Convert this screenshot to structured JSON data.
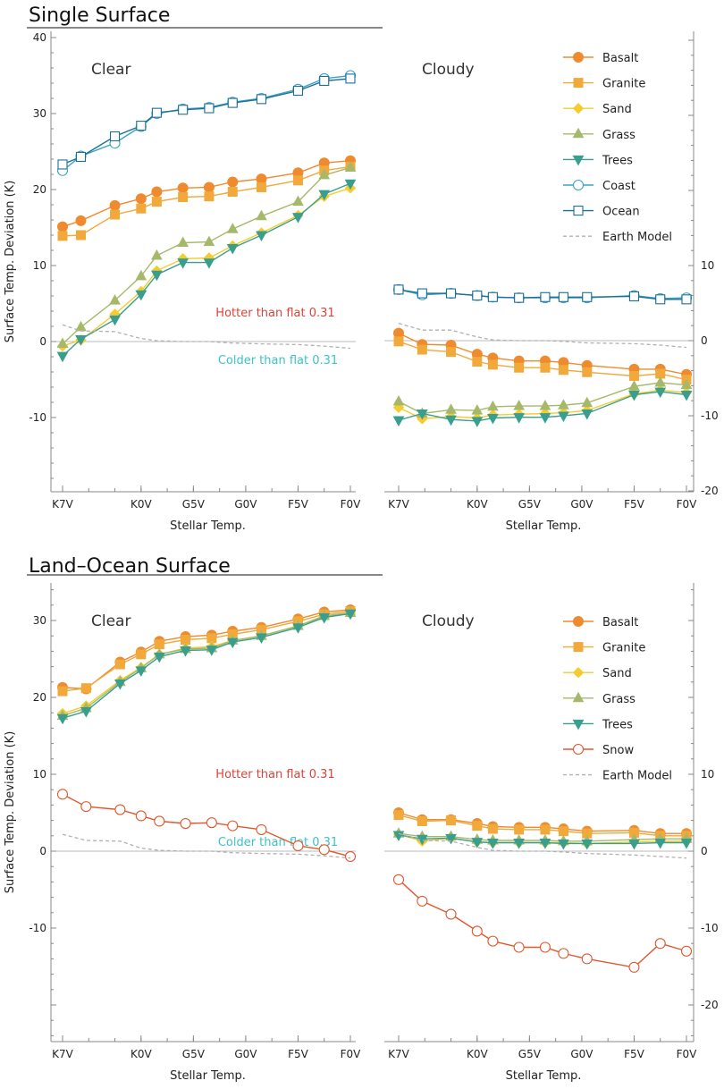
{
  "colors": {
    "Basalt": "#ef8a2e",
    "Granite": "#f2a93b",
    "Sand": "#f5cc2e",
    "Grass": "#a6b96a",
    "Trees": "#3a9e8e",
    "Coast": "#3aa3c4",
    "Ocean": "#1d6f96",
    "Snow": "#e0582e",
    "Earth Model": "#b0b0b0",
    "hotter": "#d9443a",
    "colder": "#3cc4c4"
  },
  "chart_data": [
    {
      "type": "line",
      "section": "Single Surface",
      "panel": "Clear",
      "xlabel": "Stellar Temp.",
      "ylabel": "Surface Temp. Deviation (K)",
      "ylim": [
        -20,
        41
      ],
      "yticks": [
        -10,
        0,
        10,
        20,
        30,
        40
      ],
      "x_positions": [
        0,
        1,
        2,
        3,
        4,
        5,
        6,
        7,
        8,
        9,
        10,
        11
      ],
      "x_range": [
        0,
        11
      ],
      "tick_labels": [
        {
          "x": 0,
          "label": "K7V"
        },
        {
          "x": 3,
          "label": "K0V"
        },
        {
          "x": 5,
          "label": "G5V"
        },
        {
          "x": 7,
          "label": "G0V"
        },
        {
          "x": 9,
          "label": "F5V"
        },
        {
          "x": 11,
          "label": "F0V"
        }
      ],
      "x": [
        0,
        0.7,
        2,
        3,
        3.6,
        4.6,
        5.6,
        6.5,
        7.6,
        9,
        10,
        11
      ],
      "series": [
        {
          "name": "Basalt",
          "marker": "circle",
          "values": [
            15.1,
            15.9,
            17.9,
            18.8,
            19.7,
            20.2,
            20.3,
            21.0,
            21.4,
            22.2,
            23.5,
            23.8
          ]
        },
        {
          "name": "Granite",
          "marker": "square",
          "values": [
            13.9,
            14.0,
            16.7,
            17.5,
            18.4,
            19.0,
            19.1,
            19.7,
            20.3,
            21.2,
            22.5,
            23.0
          ]
        },
        {
          "name": "Sand",
          "marker": "diamond",
          "values": [
            -0.6,
            0.2,
            3.6,
            6.6,
            9.3,
            10.9,
            11.0,
            12.6,
            14.3,
            16.6,
            19.1,
            20.2
          ]
        },
        {
          "name": "Grass",
          "marker": "triangle-up",
          "values": [
            -0.3,
            1.9,
            5.4,
            8.6,
            11.3,
            13.0,
            13.1,
            14.8,
            16.5,
            18.4,
            21.9,
            22.9
          ]
        },
        {
          "name": "Trees",
          "marker": "triangle-down",
          "values": [
            -1.9,
            0.3,
            2.9,
            6.2,
            8.8,
            10.4,
            10.4,
            12.3,
            14.0,
            16.4,
            19.4,
            20.8
          ]
        },
        {
          "name": "Coast",
          "marker": "open-circle",
          "values": [
            22.5,
            24.4,
            26.1,
            28.3,
            30.0,
            30.6,
            30.8,
            31.5,
            32.0,
            33.2,
            34.6,
            35.0
          ]
        },
        {
          "name": "Ocean",
          "marker": "open-square",
          "values": [
            23.3,
            24.3,
            27.0,
            28.4,
            30.1,
            30.5,
            30.7,
            31.4,
            31.9,
            33.0,
            34.3,
            34.6
          ]
        },
        {
          "name": "Earth Model",
          "marker": "none",
          "dashed": true,
          "values": [
            2.2,
            1.4,
            1.3,
            0.4,
            0.1,
            0.0,
            0.0,
            -0.2,
            -0.3,
            -0.4,
            -0.6,
            -0.9
          ]
        }
      ],
      "annotations": {
        "hotter": "Hotter than flat 0.31",
        "colder": "Colder than flat 0.31"
      },
      "legend": [
        "Basalt",
        "Granite",
        "Sand",
        "Grass",
        "Trees",
        "Coast",
        "Ocean",
        "Earth Model"
      ]
    },
    {
      "type": "line",
      "section": "Single Surface",
      "panel": "Cloudy",
      "xlabel": "Stellar Temp.",
      "ylabel": "",
      "ylim": [
        -20,
        41
      ],
      "yticks": [
        -20,
        -10,
        0,
        10
      ],
      "x_range": [
        0,
        11
      ],
      "tick_labels": [
        {
          "x": 0,
          "label": "K7V"
        },
        {
          "x": 3,
          "label": "K0V"
        },
        {
          "x": 5,
          "label": "G5V"
        },
        {
          "x": 7,
          "label": "G0V"
        },
        {
          "x": 9,
          "label": "F5V"
        },
        {
          "x": 11,
          "label": "F0V"
        }
      ],
      "x": [
        0,
        0.9,
        2,
        3,
        3.6,
        4.6,
        5.6,
        6.3,
        7.2,
        9,
        10,
        11
      ],
      "series": [
        {
          "name": "Basalt",
          "marker": "circle",
          "values": [
            1.0,
            -0.5,
            -0.6,
            -1.8,
            -2.3,
            -2.7,
            -2.7,
            -2.9,
            -3.3,
            -3.8,
            -3.8,
            -4.5
          ]
        },
        {
          "name": "Granite",
          "marker": "square",
          "values": [
            -0.1,
            -1.2,
            -1.5,
            -2.8,
            -3.2,
            -3.6,
            -3.6,
            -3.9,
            -4.2,
            -4.7,
            -4.4,
            -5.2
          ]
        },
        {
          "name": "Sand",
          "marker": "diamond",
          "values": [
            -8.9,
            -10.4,
            -10.1,
            -10.3,
            -9.9,
            -9.8,
            -9.7,
            -9.6,
            -9.3,
            -7.1,
            -6.6,
            -6.9
          ]
        },
        {
          "name": "Grass",
          "marker": "triangle-up",
          "values": [
            -8.1,
            -9.7,
            -9.2,
            -9.3,
            -8.8,
            -8.7,
            -8.7,
            -8.6,
            -8.3,
            -6.1,
            -5.6,
            -5.9
          ]
        },
        {
          "name": "Trees",
          "marker": "triangle-down",
          "values": [
            -10.6,
            -9.7,
            -10.5,
            -10.7,
            -10.3,
            -10.2,
            -10.2,
            -10.0,
            -9.7,
            -7.2,
            -6.8,
            -7.2
          ]
        },
        {
          "name": "Coast",
          "marker": "open-circle",
          "values": [
            6.8,
            6.1,
            6.3,
            6.0,
            5.8,
            5.7,
            5.7,
            5.7,
            5.7,
            6.0,
            5.6,
            5.7
          ]
        },
        {
          "name": "Ocean",
          "marker": "open-square",
          "values": [
            6.8,
            6.3,
            6.3,
            6.0,
            5.8,
            5.7,
            5.8,
            5.8,
            5.8,
            5.9,
            5.5,
            5.5
          ]
        },
        {
          "name": "Earth Model",
          "marker": "none",
          "dashed": true,
          "values": [
            2.3,
            1.4,
            1.4,
            0.5,
            0.1,
            0.0,
            0.0,
            -0.1,
            -0.3,
            -0.4,
            -0.6,
            -0.9
          ]
        }
      ]
    },
    {
      "type": "line",
      "section": "Land–Ocean Surface",
      "panel": "Clear",
      "xlabel": "Stellar Temp.",
      "ylabel": "Surface Temp. Deviation (K)",
      "ylim": [
        -24,
        34
      ],
      "yticks": [
        -10,
        0,
        10,
        20,
        30
      ],
      "x_range": [
        0,
        11
      ],
      "tick_labels": [
        {
          "x": 0,
          "label": "K7V"
        },
        {
          "x": 3,
          "label": "K0V"
        },
        {
          "x": 5,
          "label": "G5V"
        },
        {
          "x": 7,
          "label": "G0V"
        },
        {
          "x": 9,
          "label": "F5V"
        },
        {
          "x": 11,
          "label": "F0V"
        }
      ],
      "x": [
        0,
        0.9,
        2.2,
        3,
        3.7,
        4.7,
        5.7,
        6.5,
        7.6,
        9,
        10,
        11
      ],
      "series": [
        {
          "name": "Basalt",
          "marker": "circle",
          "values": [
            21.3,
            21.1,
            24.6,
            25.9,
            27.3,
            27.9,
            28.1,
            28.6,
            29.1,
            30.2,
            31.1,
            31.4
          ]
        },
        {
          "name": "Granite",
          "marker": "square",
          "values": [
            20.8,
            21.2,
            24.3,
            25.6,
            26.9,
            27.5,
            27.7,
            28.2,
            28.8,
            29.9,
            30.8,
            31.2
          ]
        },
        {
          "name": "Sand",
          "marker": "diamond",
          "values": [
            17.9,
            18.9,
            22.2,
            23.9,
            25.6,
            26.4,
            26.6,
            27.4,
            28.0,
            29.3,
            30.5,
            30.9
          ]
        },
        {
          "name": "Grass",
          "marker": "triangle-up",
          "values": [
            17.6,
            18.6,
            22.0,
            23.8,
            25.6,
            26.3,
            26.4,
            27.4,
            28.0,
            29.3,
            30.6,
            31.0
          ]
        },
        {
          "name": "Trees",
          "marker": "triangle-down",
          "values": [
            17.3,
            18.2,
            21.8,
            23.5,
            25.3,
            26.1,
            26.2,
            27.2,
            27.8,
            29.1,
            30.4,
            30.9
          ]
        },
        {
          "name": "Snow",
          "marker": "open-circle",
          "values": [
            7.4,
            5.8,
            5.4,
            4.6,
            3.9,
            3.6,
            3.7,
            3.3,
            2.8,
            0.7,
            0.2,
            -0.7
          ]
        },
        {
          "name": "Earth Model",
          "marker": "none",
          "dashed": true,
          "values": [
            2.2,
            1.4,
            1.3,
            0.4,
            0.1,
            0.0,
            0.0,
            -0.2,
            -0.3,
            -0.4,
            -0.6,
            -0.9
          ]
        }
      ],
      "annotations": {
        "hotter": "Hotter than flat 0.31",
        "colder": "Colder than flat 0.31"
      }
    },
    {
      "type": "line",
      "section": "Land–Ocean Surface",
      "panel": "Cloudy",
      "xlabel": "Stellar Temp.",
      "ylabel": "",
      "ylim": [
        -24,
        34
      ],
      "yticks": [
        -20,
        -10,
        0,
        10
      ],
      "x_range": [
        0,
        11
      ],
      "tick_labels": [
        {
          "x": 0,
          "label": "K7V"
        },
        {
          "x": 3,
          "label": "K0V"
        },
        {
          "x": 5,
          "label": "G5V"
        },
        {
          "x": 7,
          "label": "G0V"
        },
        {
          "x": 9,
          "label": "F5V"
        },
        {
          "x": 11,
          "label": "F0V"
        }
      ],
      "x": [
        0,
        0.9,
        2,
        3,
        3.6,
        4.6,
        5.6,
        6.3,
        7.2,
        9,
        10,
        11
      ],
      "series": [
        {
          "name": "Basalt",
          "marker": "circle",
          "values": [
            5.0,
            4.1,
            4.1,
            3.6,
            3.2,
            3.1,
            3.1,
            2.9,
            2.6,
            2.7,
            2.3,
            2.3
          ]
        },
        {
          "name": "Granite",
          "marker": "square",
          "values": [
            4.7,
            3.9,
            4.0,
            3.3,
            2.9,
            2.8,
            2.8,
            2.6,
            2.3,
            2.4,
            2.0,
            2.0
          ]
        },
        {
          "name": "Sand",
          "marker": "diamond",
          "values": [
            2.2,
            1.3,
            1.7,
            1.2,
            1.1,
            1.1,
            1.1,
            1.1,
            1.0,
            1.2,
            1.3,
            1.3
          ]
        },
        {
          "name": "Grass",
          "marker": "triangle-up",
          "values": [
            2.3,
            1.9,
            1.9,
            1.5,
            1.4,
            1.4,
            1.4,
            1.3,
            1.3,
            1.5,
            1.6,
            1.6
          ]
        },
        {
          "name": "Trees",
          "marker": "triangle-down",
          "values": [
            2.1,
            1.6,
            1.7,
            1.2,
            1.1,
            1.1,
            1.1,
            1.0,
            1.0,
            1.0,
            1.1,
            1.1
          ]
        },
        {
          "name": "Snow",
          "marker": "open-circle",
          "values": [
            -3.7,
            -6.5,
            -8.2,
            -10.4,
            -11.7,
            -12.5,
            -12.5,
            -13.3,
            -14.0,
            -15.1,
            -12.0,
            -13.0
          ]
        },
        {
          "name": "Earth Model",
          "marker": "none",
          "dashed": true,
          "values": [
            2.3,
            1.4,
            1.3,
            0.5,
            0.1,
            0.0,
            0.0,
            -0.1,
            -0.3,
            -0.5,
            -0.7,
            -0.9
          ]
        }
      ],
      "legend": [
        "Basalt",
        "Granite",
        "Sand",
        "Grass",
        "Trees",
        "Snow",
        "Earth Model"
      ]
    }
  ]
}
